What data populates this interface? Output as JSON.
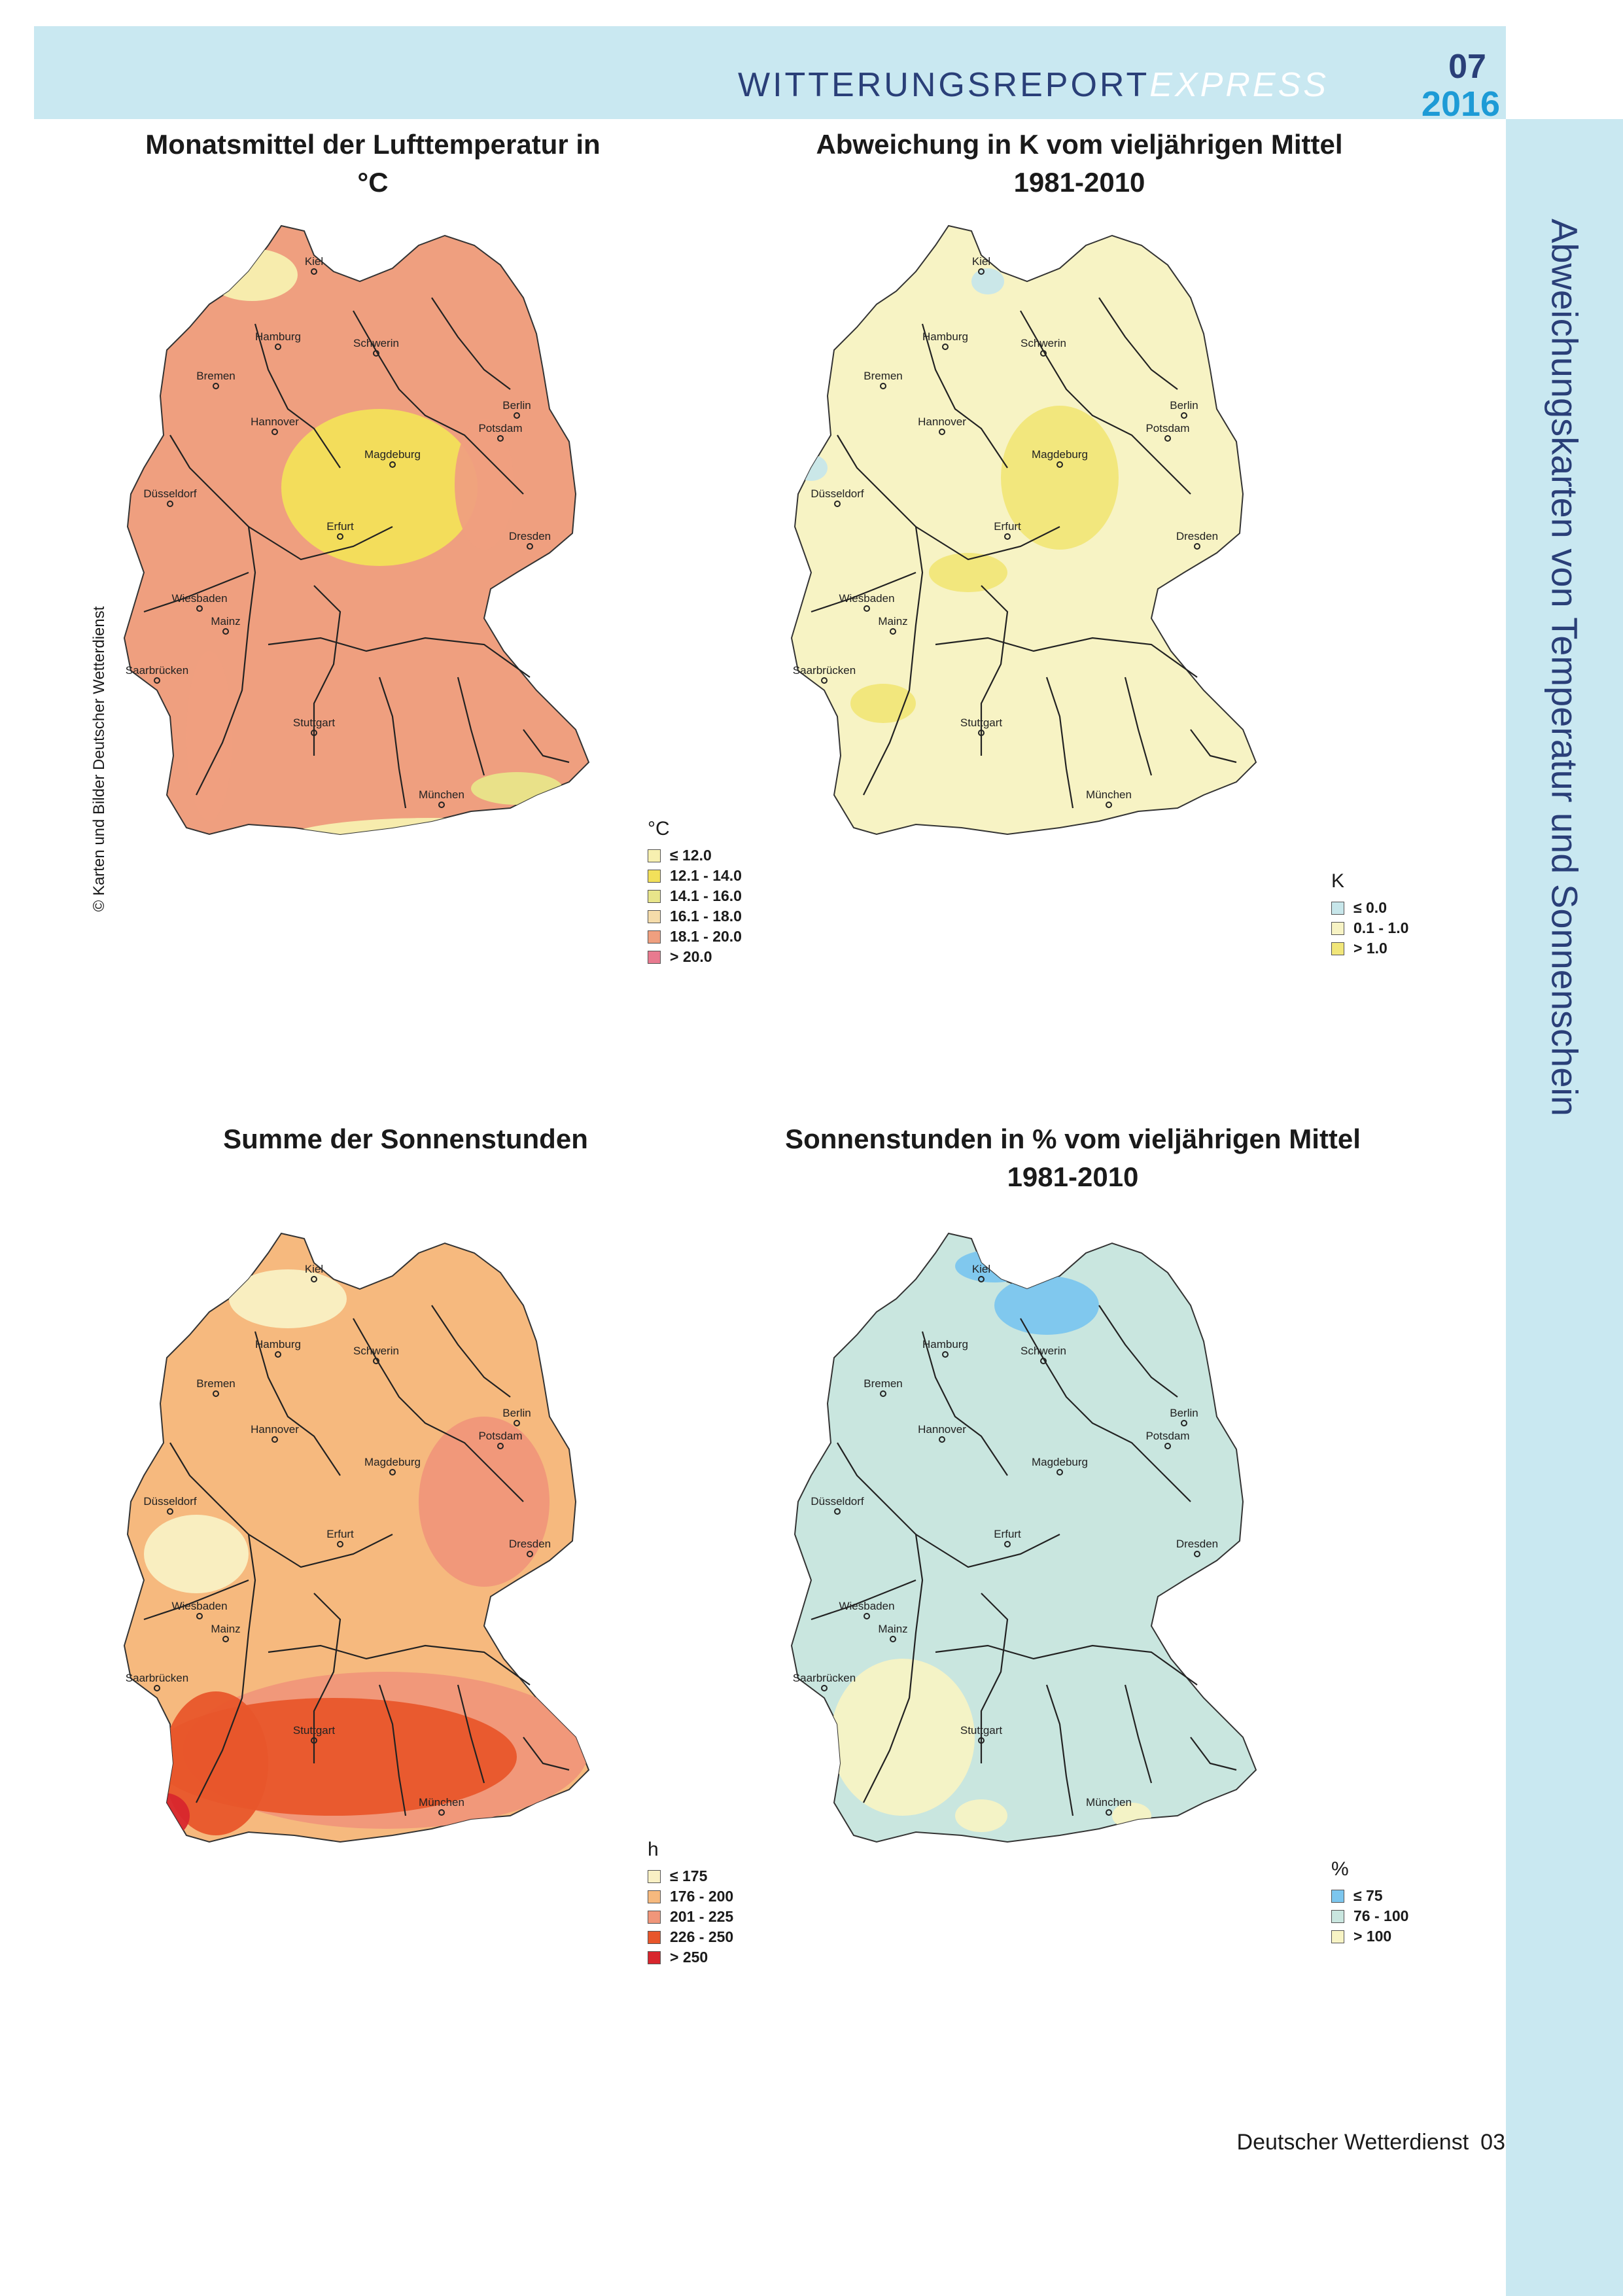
{
  "header": {
    "brand": "WITTERUNGSREPORT",
    "brand_suffix": "EXPRESS",
    "issue_number": "07",
    "issue_year": "2016"
  },
  "side_title": "Abweichungskarten von Temperatur und Sonnenschein",
  "credit": "© Karten und Bilder Deutscher Wetterdienst",
  "footer": {
    "publisher": "Deutscher Wetterdienst",
    "page": "03"
  },
  "cities": [
    "Kiel",
    "Hamburg",
    "Schwerin",
    "Bremen",
    "Berlin",
    "Potsdam",
    "Hannover",
    "Magdeburg",
    "Düsseldorf",
    "Erfurt",
    "Dresden",
    "Wiesbaden",
    "Mainz",
    "Saarbrücken",
    "Stuttgart",
    "München"
  ],
  "maps": [
    {
      "title": "Monatsmittel der Lufttemperatur in °C",
      "legend_unit": "°C",
      "base_color": "#ef9f7f",
      "legend": [
        {
          "label": "≤ 12.0",
          "color": "#f7f0b0"
        },
        {
          "label": "12.1 - 14.0",
          "color": "#f2e05a"
        },
        {
          "label": "14.1 - 16.0",
          "color": "#e8e58a"
        },
        {
          "label": "16.1 - 18.0",
          "color": "#f5dcaa"
        },
        {
          "label": "18.1 - 20.0",
          "color": "#ef9f7f"
        },
        {
          "label": "> 20.0",
          "color": "#e87a8f"
        }
      ]
    },
    {
      "title": "Abweichung in K vom vieljährigen Mittel 1981-2010",
      "legend_unit": "K",
      "base_color": "#f7f3c4",
      "legend": [
        {
          "label": "≤ 0.0",
          "color": "#c7e6ea"
        },
        {
          "label": "0.1 - 1.0",
          "color": "#f7f3c4"
        },
        {
          "label": "> 1.0",
          "color": "#f1e679"
        }
      ]
    },
    {
      "title": "Summe der Sonnenstunden",
      "legend_unit": "h",
      "base_color": "#f6b97e",
      "legend": [
        {
          "label": "≤ 175",
          "color": "#f9f0c4"
        },
        {
          "label": "176 - 200",
          "color": "#f6b97e"
        },
        {
          "label": "201 - 225",
          "color": "#f0967a"
        },
        {
          "label": "226 - 250",
          "color": "#e8562b"
        },
        {
          "label": "> 250",
          "color": "#d8262d"
        }
      ]
    },
    {
      "title": "Sonnenstunden in % vom vieljährigen Mittel 1981-2010",
      "legend_unit": "%",
      "base_color": "#c9e6df",
      "legend": [
        {
          "label": "≤ 75",
          "color": "#7cc6ee"
        },
        {
          "label": "76 - 100",
          "color": "#c9e6df"
        },
        {
          "label": "> 100",
          "color": "#f7f3c4"
        }
      ]
    }
  ]
}
